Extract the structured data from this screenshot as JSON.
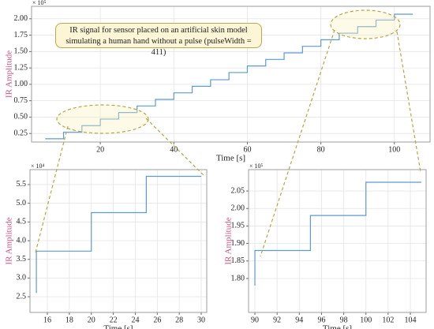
{
  "chart_data": [
    {
      "type": "line",
      "drawstyle": "steps-post",
      "title": "IR signal for sensor placed on an artificial skin model simulating a human hand without a pulse (pulseWidth = 411)",
      "xlabel": "Time [s]",
      "ylabel": "IR Amplitude",
      "y_multiplier": "× 10⁵",
      "x": [
        5,
        10,
        15,
        20,
        25,
        30,
        35,
        40,
        45,
        50,
        55,
        60,
        65,
        70,
        75,
        80,
        85,
        90,
        95,
        100,
        105
      ],
      "values": [
        0.17,
        0.27,
        0.37,
        0.47,
        0.57,
        0.67,
        0.77,
        0.87,
        0.97,
        1.07,
        1.18,
        1.28,
        1.38,
        1.48,
        1.58,
        1.68,
        1.78,
        1.88,
        1.98,
        2.07,
        2.07
      ],
      "color": "#5b9bd0",
      "grid": true,
      "xlim": [
        1.3,
        109.7
      ],
      "xticks": [
        20,
        40,
        60,
        80,
        100
      ],
      "ylim": [
        0.12,
        2.19
      ],
      "yticks": [
        0.25,
        {
          "value": 0.5,
          "label": "0.50"
        },
        0.75,
        {
          "value": 1,
          "label": "1.00"
        },
        1.25,
        {
          "value": 1.5,
          "label": "1.50"
        },
        1.75,
        {
          "value": 2,
          "label": "2.00"
        }
      ]
    },
    {
      "type": "line",
      "drawstyle": "steps-post",
      "xlabel": "Time [s]",
      "ylabel": "IR Amplitude",
      "y_multiplier": "× 10⁴",
      "x": [
        15,
        15,
        20,
        25,
        30
      ],
      "values": [
        2.6,
        3.72,
        4.75,
        5.72,
        5.72
      ],
      "color": "#5b9bd0",
      "grid": true,
      "xlim": [
        14.42,
        30.5
      ],
      "xticks": [
        16,
        18,
        20,
        22,
        24,
        26,
        28,
        30
      ],
      "ylim": [
        2.08,
        5.9
      ],
      "yticks": [
        2.5,
        {
          "value": 3,
          "label": "3.0"
        },
        3.5,
        {
          "value": 4,
          "label": "4.0"
        },
        4.5,
        {
          "value": 5,
          "label": "5.0"
        },
        5.5
      ]
    },
    {
      "type": "line",
      "drawstyle": "steps-post",
      "xlabel": "Time [s]",
      "ylabel": "IR Amplitude",
      "y_multiplier": "× 10⁵",
      "x": [
        90,
        90,
        95,
        100,
        105
      ],
      "values": [
        1.78,
        1.88,
        1.98,
        2.075,
        2.075
      ],
      "color": "#5b9bd0",
      "grid": true,
      "xlim": [
        89.43,
        105.42
      ],
      "xticks": [
        90,
        92,
        94,
        96,
        98,
        100,
        102,
        104
      ],
      "ylim": [
        1.703,
        2.111
      ],
      "yticks": [
        {
          "value": 1.8,
          "label": "1.80"
        },
        1.85,
        {
          "value": 1.9,
          "label": "1.90"
        },
        1.95,
        {
          "value": 2,
          "label": "2.00"
        },
        2.05
      ]
    }
  ]
}
